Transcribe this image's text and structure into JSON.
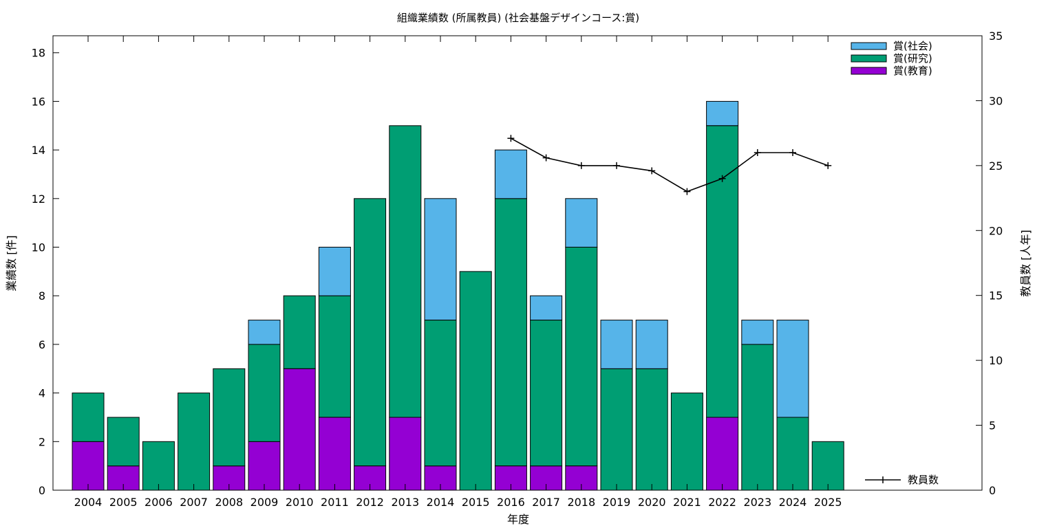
{
  "chart_data": {
    "type": "bar",
    "stacked": true,
    "title": "組織業績数 (所属教員) (社会基盤デザインコース:賞)",
    "xlabel": "年度",
    "ylabel": "業績数 [件]",
    "y2label": "教員数 [人年]",
    "ylim": [
      0,
      18.7
    ],
    "y2lim": [
      0,
      35
    ],
    "yticks": [
      "0",
      "2",
      "4",
      "6",
      "8",
      "10",
      "12",
      "14",
      "16",
      "18"
    ],
    "y2ticks": [
      "0",
      "5",
      "10",
      "15",
      "20",
      "25",
      "30",
      "35"
    ],
    "grid": false,
    "legend_position": "top-right",
    "categories": [
      "2004",
      "2005",
      "2006",
      "2007",
      "2008",
      "2009",
      "2010",
      "2011",
      "2012",
      "2013",
      "2014",
      "2015",
      "2016",
      "2017",
      "2018",
      "2019",
      "2020",
      "2021",
      "2022",
      "2023",
      "2024",
      "2025"
    ],
    "series": [
      {
        "name": "賞(教育)",
        "color": "#9400d3",
        "values": [
          2,
          1,
          0,
          0,
          1,
          2,
          5,
          3,
          1,
          3,
          1,
          0,
          1,
          1,
          1,
          0,
          0,
          0,
          3,
          0,
          0,
          0
        ]
      },
      {
        "name": "賞(研究)",
        "color": "#009e73",
        "values": [
          2,
          2,
          2,
          4,
          4,
          4,
          3,
          5,
          11,
          12,
          6,
          9,
          11,
          6,
          9,
          5,
          5,
          4,
          12,
          6,
          3,
          2
        ]
      },
      {
        "name": "賞(社会)",
        "color": "#56b4e9",
        "values": [
          0,
          0,
          0,
          0,
          0,
          1,
          0,
          2,
          0,
          0,
          5,
          0,
          2,
          1,
          2,
          2,
          2,
          0,
          1,
          1,
          4,
          0
        ]
      }
    ],
    "legend_order": [
      "賞(社会)",
      "賞(研究)",
      "賞(教育)"
    ],
    "line_series": {
      "name": "教員数",
      "axis": "y2",
      "color": "#000000",
      "x": [
        "2016",
        "2017",
        "2018",
        "2019",
        "2020",
        "2021",
        "2022",
        "2023",
        "2024",
        "2025"
      ],
      "values": [
        27.1,
        25.6,
        25.0,
        25.0,
        24.6,
        23.0,
        24.0,
        26.0,
        26.0,
        25.0
      ]
    }
  }
}
